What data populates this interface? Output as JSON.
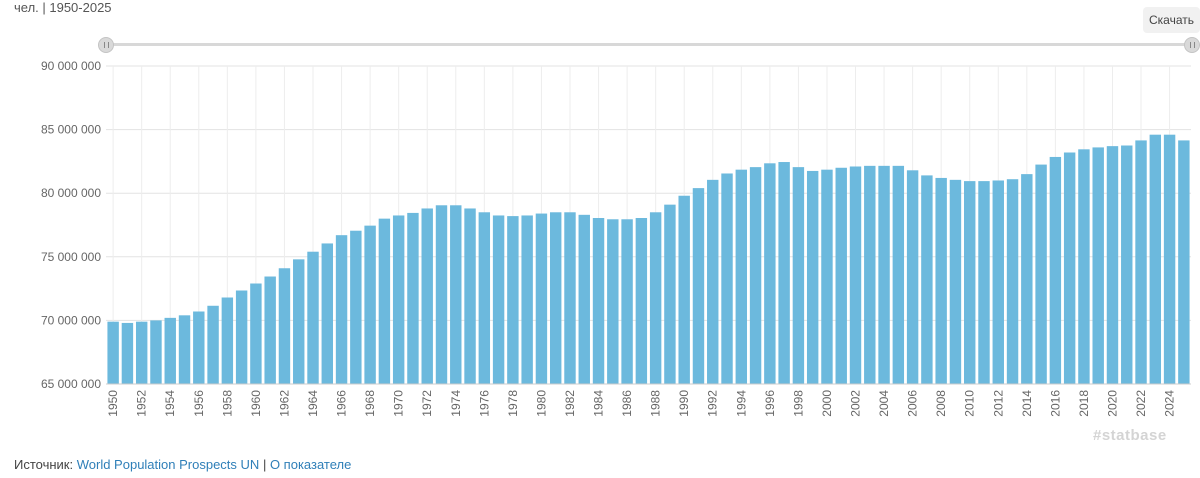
{
  "header": {
    "subtitle": "чел. | 1950-2025",
    "download_label": "Скачать"
  },
  "watermark": "#statbase",
  "source": {
    "prefix": "Источник:",
    "link_text": "World Population Prospects UN",
    "separator": "|",
    "about_text": "О показателе"
  },
  "colors": {
    "bar": "#6cb9dd",
    "link": "#2f7fb8"
  },
  "chart_data": {
    "type": "bar",
    "title": "",
    "xlabel": "",
    "ylabel": "",
    "ylim": [
      65000000,
      90000000
    ],
    "yticks": [
      {
        "value": 65000000,
        "label": "65 000 000"
      },
      {
        "value": 70000000,
        "label": "70 000 000"
      },
      {
        "value": 75000000,
        "label": "75 000 000"
      },
      {
        "value": 80000000,
        "label": "80 000 000"
      },
      {
        "value": 85000000,
        "label": "85 000 000"
      },
      {
        "value": 90000000,
        "label": "90 000 000"
      }
    ],
    "grid": true,
    "categories": [
      1950,
      1951,
      1952,
      1953,
      1954,
      1955,
      1956,
      1957,
      1958,
      1959,
      1960,
      1961,
      1962,
      1963,
      1964,
      1965,
      1966,
      1967,
      1968,
      1969,
      1970,
      1971,
      1972,
      1973,
      1974,
      1975,
      1976,
      1977,
      1978,
      1979,
      1980,
      1981,
      1982,
      1983,
      1984,
      1985,
      1986,
      1987,
      1988,
      1989,
      1990,
      1991,
      1992,
      1993,
      1994,
      1995,
      1996,
      1997,
      1998,
      1999,
      2000,
      2001,
      2002,
      2003,
      2004,
      2005,
      2006,
      2007,
      2008,
      2009,
      2010,
      2011,
      2012,
      2013,
      2014,
      2015,
      2016,
      2017,
      2018,
      2019,
      2020,
      2021,
      2022,
      2023,
      2024,
      2025
    ],
    "values": [
      69900000,
      69800000,
      69900000,
      70000000,
      70200000,
      70400000,
      70700000,
      71150000,
      71800000,
      72350000,
      72900000,
      73450000,
      74100000,
      74800000,
      75400000,
      76050000,
      76700000,
      77050000,
      77450000,
      78000000,
      78250000,
      78450000,
      78800000,
      79050000,
      79050000,
      78800000,
      78500000,
      78250000,
      78200000,
      78250000,
      78400000,
      78500000,
      78500000,
      78300000,
      78050000,
      77950000,
      77950000,
      78050000,
      78500000,
      79100000,
      79800000,
      80400000,
      81050000,
      81550000,
      81850000,
      82050000,
      82350000,
      82450000,
      82050000,
      81750000,
      81850000,
      82000000,
      82100000,
      82150000,
      82150000,
      82150000,
      81800000,
      81400000,
      81200000,
      81050000,
      80950000,
      80950000,
      81000000,
      81100000,
      81500000,
      82250000,
      82850000,
      83200000,
      83450000,
      83600000,
      83700000,
      83750000,
      84150000,
      84600000,
      84600000,
      84150000
    ]
  }
}
